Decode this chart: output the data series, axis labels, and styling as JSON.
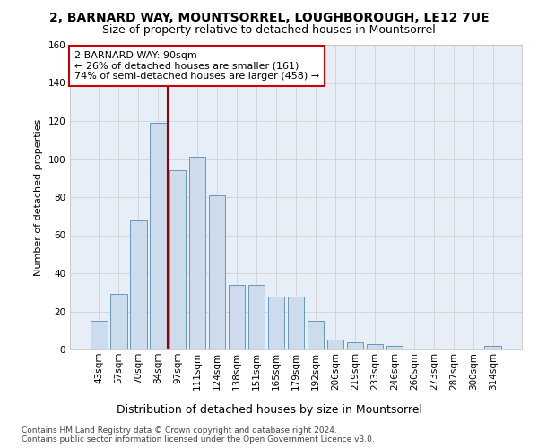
{
  "title": "2, BARNARD WAY, MOUNTSORREL, LOUGHBOROUGH, LE12 7UE",
  "subtitle": "Size of property relative to detached houses in Mountsorrel",
  "xlabel": "Distribution of detached houses by size in Mountsorrel",
  "ylabel": "Number of detached properties",
  "bar_color": "#ccdcec",
  "bar_edge_color": "#6699bb",
  "grid_color": "#cccccc",
  "bg_color": "#e8eef8",
  "categories": [
    "43sqm",
    "57sqm",
    "70sqm",
    "84sqm",
    "97sqm",
    "111sqm",
    "124sqm",
    "138sqm",
    "151sqm",
    "165sqm",
    "179sqm",
    "192sqm",
    "206sqm",
    "219sqm",
    "233sqm",
    "246sqm",
    "260sqm",
    "273sqm",
    "287sqm",
    "300sqm",
    "314sqm"
  ],
  "values": [
    15,
    29,
    68,
    119,
    94,
    101,
    81,
    34,
    34,
    28,
    28,
    15,
    5,
    4,
    3,
    2,
    0,
    0,
    0,
    0,
    2
  ],
  "vline_x": 3.5,
  "vline_color": "#990000",
  "annotation_text": "2 BARNARD WAY: 90sqm\n← 26% of detached houses are smaller (161)\n74% of semi-detached houses are larger (458) →",
  "annotation_box_color": "#ffffff",
  "annotation_box_edge": "#cc0000",
  "ylim": [
    0,
    160
  ],
  "yticks": [
    0,
    20,
    40,
    60,
    80,
    100,
    120,
    140,
    160
  ],
  "footer_text": "Contains HM Land Registry data © Crown copyright and database right 2024.\nContains public sector information licensed under the Open Government Licence v3.0.",
  "title_fontsize": 10,
  "subtitle_fontsize": 9,
  "xlabel_fontsize": 9,
  "ylabel_fontsize": 8,
  "tick_fontsize": 7.5,
  "annotation_fontsize": 8,
  "footer_fontsize": 6.5
}
